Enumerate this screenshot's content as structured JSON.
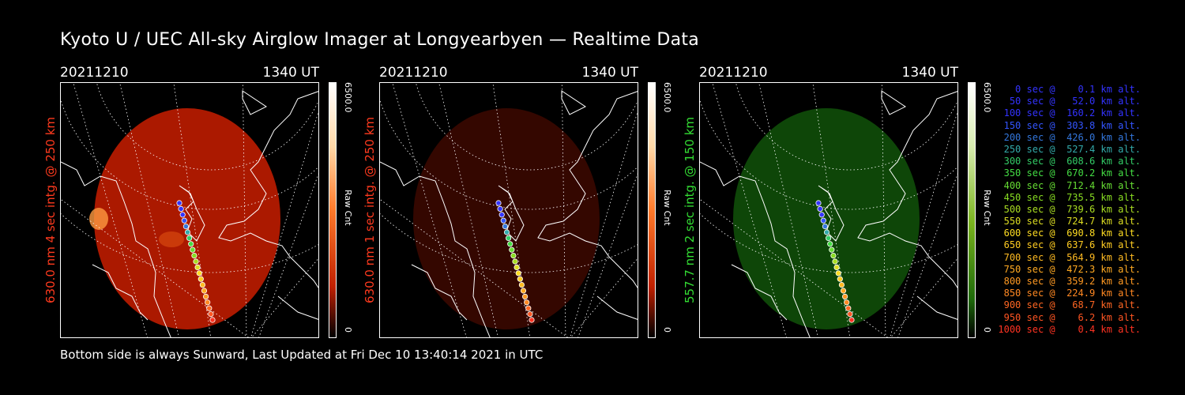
{
  "title": "Kyoto U / UEC All-sky Airglow Imager at Longyearbyen — Realtime Data",
  "footer": "Bottom side is always Sunward, Last Updated at Fri Dec 10 13:40:14 2021 in UTC",
  "panels": [
    {
      "date": "20211210",
      "time": "1340 UT",
      "label": "630.0 nm 4 sec intg. @ 250 km",
      "label_color": "#ff3a1e",
      "cbar_max": "6500.0",
      "cbar_unit": "Raw Cnt",
      "cbar_min": "0",
      "image_color": "#b41a00",
      "image_opacity": "0.95",
      "scheme": "red"
    },
    {
      "date": "20211210",
      "time": "1340 UT",
      "label": "630.0 nm 1 sec intg. @ 250 km",
      "label_color": "#ff3a1e",
      "cbar_max": "6500.0",
      "cbar_unit": "Raw Cnt",
      "cbar_min": "0",
      "image_color": "#3a0800",
      "image_opacity": "0.9",
      "scheme": "red"
    },
    {
      "date": "20211210",
      "time": "1340 UT",
      "label": "557.7 nm 2 sec intg. @ 150 km",
      "label_color": "#33dd33",
      "cbar_max": "6500.0",
      "cbar_unit": "Raw Cnt",
      "cbar_min": "0",
      "image_color": "#0f4a08",
      "image_opacity": "0.95",
      "scheme": "green"
    }
  ],
  "legend": [
    {
      "text": "0 sec @    0.1 km alt.",
      "color": "#3333ff"
    },
    {
      "text": "50 sec @   52.0 km alt.",
      "color": "#3333ff"
    },
    {
      "text": "100 sec @  160.2 km alt.",
      "color": "#3333ff"
    },
    {
      "text": "150 sec @  303.8 km alt.",
      "color": "#3355ff"
    },
    {
      "text": "200 sec @  426.0 km alt.",
      "color": "#3377dd"
    },
    {
      "text": "250 sec @  527.4 km alt.",
      "color": "#33aaaa"
    },
    {
      "text": "300 sec @  608.6 km alt.",
      "color": "#33cc66"
    },
    {
      "text": "350 sec @  670.2 km alt.",
      "color": "#44dd44"
    },
    {
      "text": "400 sec @  712.4 km alt.",
      "color": "#66dd33"
    },
    {
      "text": "450 sec @  735.5 km alt.",
      "color": "#88dd22"
    },
    {
      "text": "500 sec @  739.6 km alt.",
      "color": "#aadd22"
    },
    {
      "text": "550 sec @  724.7 km alt.",
      "color": "#dddd22"
    },
    {
      "text": "600 sec @  690.8 km alt.",
      "color": "#ffdd22"
    },
    {
      "text": "650 sec @  637.6 km alt.",
      "color": "#ffcc22"
    },
    {
      "text": "700 sec @  564.9 km alt.",
      "color": "#ffbb22"
    },
    {
      "text": "750 sec @  472.3 km alt.",
      "color": "#ffaa22"
    },
    {
      "text": "800 sec @  359.2 km alt.",
      "color": "#ff9922"
    },
    {
      "text": "850 sec @  224.9 km alt.",
      "color": "#ff8822"
    },
    {
      "text": "900 sec @   68.7 km alt.",
      "color": "#ff6622"
    },
    {
      "text": "950 sec @    6.2 km alt.",
      "color": "#ff5522"
    },
    {
      "text": "1000 sec @    0.4 km alt.",
      "color": "#ff3322"
    }
  ]
}
